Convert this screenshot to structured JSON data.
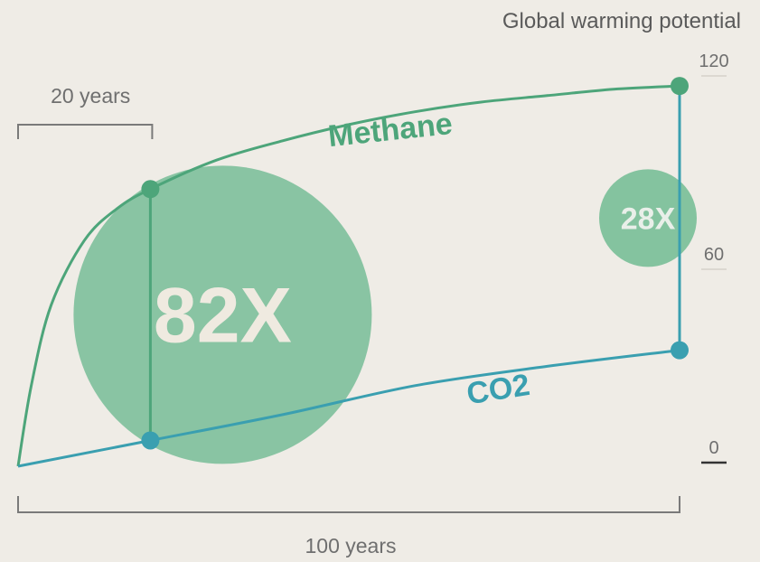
{
  "chart_data": {
    "type": "line",
    "title": "",
    "ylabel": "Global warming potential",
    "y_ticks": [
      {
        "value": 0,
        "label": "0"
      },
      {
        "value": 60,
        "label": "60"
      },
      {
        "value": 120,
        "label": "120"
      }
    ],
    "ylim": [
      0,
      120
    ],
    "xlim": [
      0,
      100
    ],
    "x_unit": "years",
    "brackets": [
      {
        "from": 0,
        "to": 20,
        "label": "20 years"
      },
      {
        "from": 0,
        "to": 100,
        "label": "100 years"
      }
    ],
    "series": [
      {
        "name": "Methane",
        "color": "#4da57a",
        "x": [
          0,
          2,
          5,
          10,
          15,
          20,
          30,
          40,
          50,
          60,
          70,
          80,
          90,
          100
        ],
        "y": [
          0,
          25,
          50,
          70,
          80,
          86,
          95,
          101,
          106,
          110,
          113,
          115,
          117,
          118
        ],
        "markers": [
          {
            "x": 20,
            "y": 86
          },
          {
            "x": 100,
            "y": 118
          }
        ]
      },
      {
        "name": "CO2",
        "color": "#3a9fb0",
        "x": [
          0,
          20,
          40,
          60,
          80,
          100
        ],
        "y": [
          0,
          8,
          16,
          25,
          31,
          36
        ],
        "markers": [
          {
            "x": 20,
            "y": 8
          },
          {
            "x": 100,
            "y": 36
          }
        ]
      }
    ],
    "annotations": [
      {
        "text": "82X",
        "x": 20,
        "y_mid": 47,
        "size": "large",
        "color": "#6cb98f"
      },
      {
        "text": "28X",
        "x": 100,
        "y_mid": 77,
        "size": "small",
        "color": "#6cb98f"
      }
    ],
    "grid": false,
    "legend": "none"
  }
}
